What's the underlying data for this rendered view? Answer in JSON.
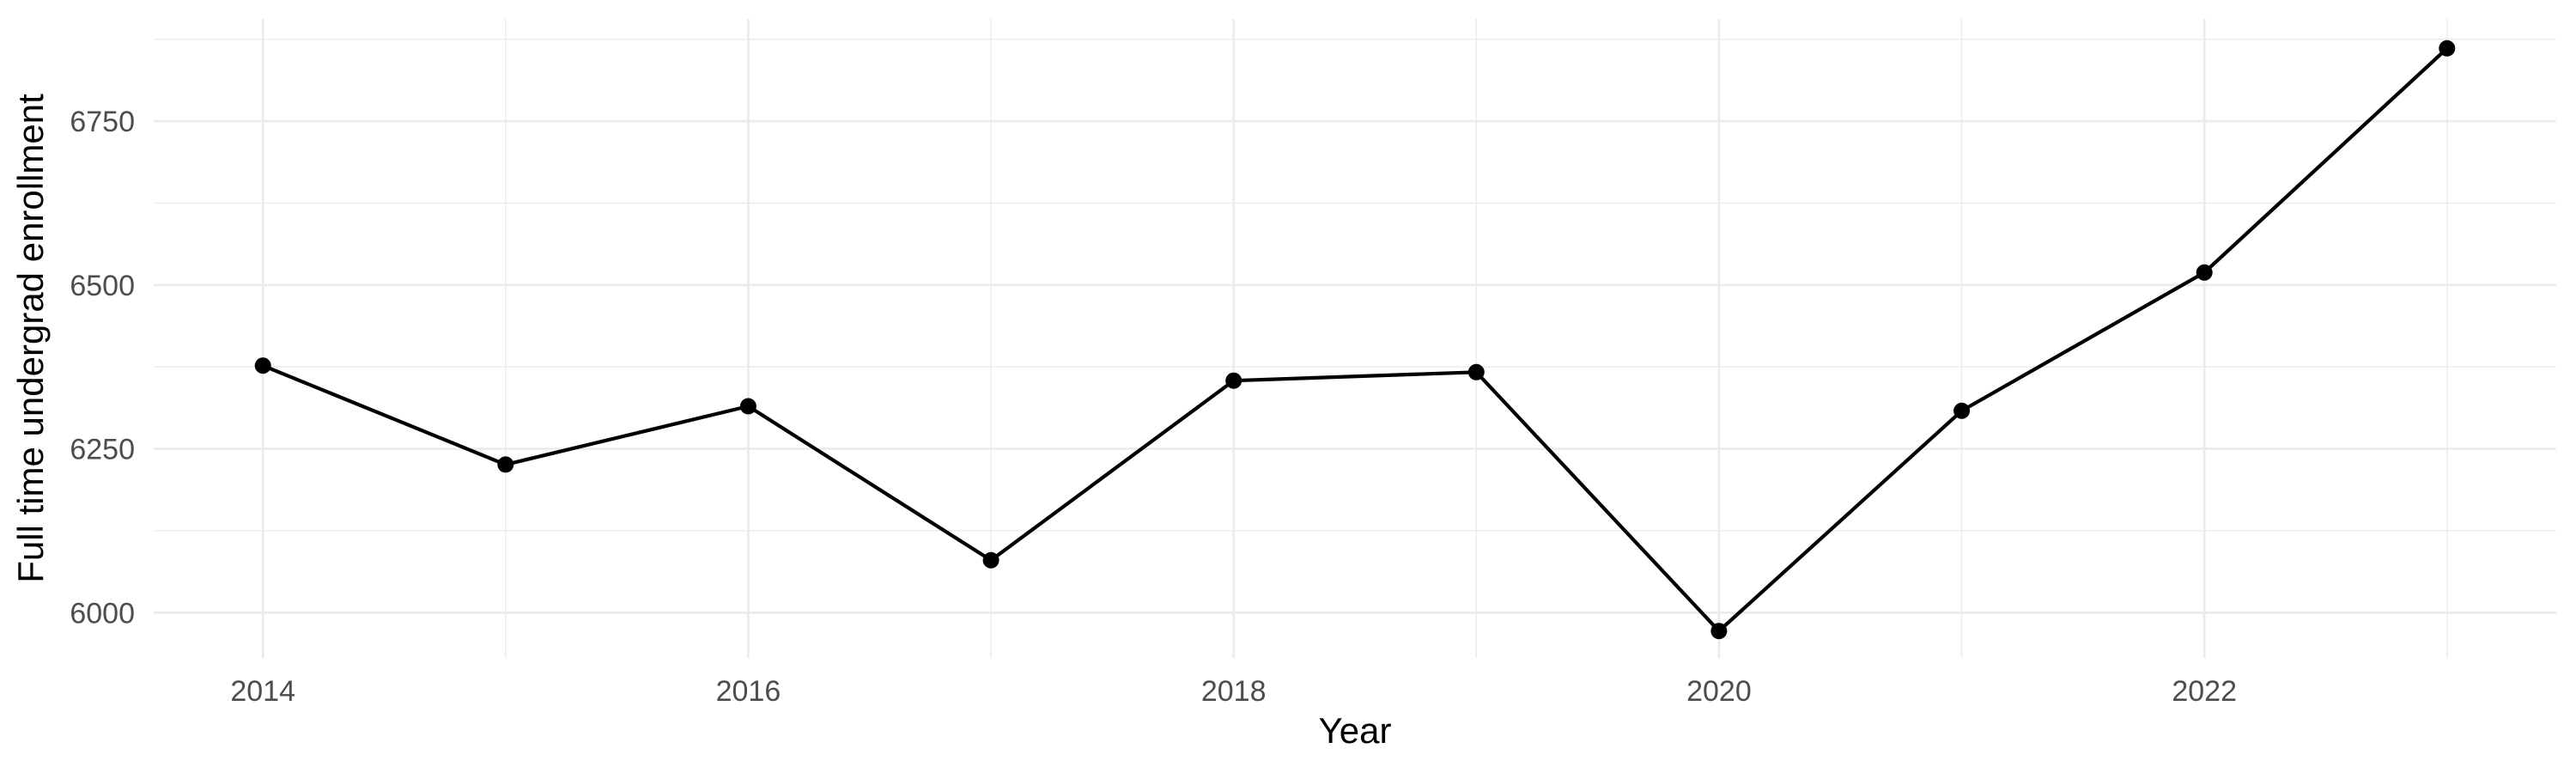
{
  "chart_data": {
    "type": "line",
    "xlabel": "Year",
    "ylabel": "Full time undergrad enrollment",
    "x": [
      2014,
      2015,
      2016,
      2017,
      2018,
      2019,
      2020,
      2021,
      2022,
      2023
    ],
    "values": [
      6377,
      6226,
      6315,
      6080,
      6354,
      6367,
      5972,
      6308,
      6519,
      6861
    ],
    "x_ticks": [
      {
        "value": 2014,
        "label": "2014"
      },
      {
        "value": 2016,
        "label": "2016"
      },
      {
        "value": 2018,
        "label": "2018"
      },
      {
        "value": 2020,
        "label": "2020"
      },
      {
        "value": 2022,
        "label": "2022"
      }
    ],
    "x_minor_breaks": [
      2015,
      2017,
      2019,
      2021,
      2023
    ],
    "y_ticks": [
      {
        "value": 6000,
        "label": "6000"
      },
      {
        "value": 6250,
        "label": "6250"
      },
      {
        "value": 6500,
        "label": "6500"
      },
      {
        "value": 6750,
        "label": "6750"
      }
    ],
    "y_minor_breaks": [
      6125,
      6375,
      6625,
      6875
    ],
    "xlim": [
      2013.55,
      2023.45
    ],
    "ylim": [
      5931,
      6906
    ],
    "grid": "on",
    "legend": "none",
    "style": {
      "background": "#ffffff",
      "grid_color": "#ebebeb",
      "line_color": "#000000",
      "point_color": "#000000",
      "tick_label_color": "#4d4d4d",
      "axis_title_color": "#000000"
    }
  }
}
